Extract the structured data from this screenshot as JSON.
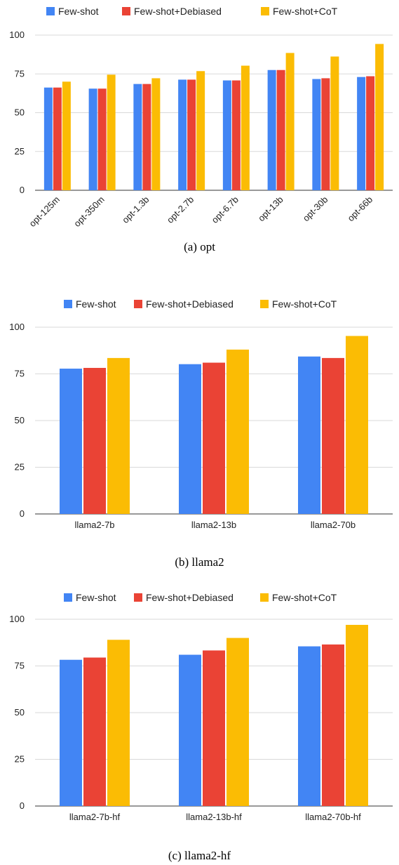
{
  "colors": {
    "few_shot": "#4285F4",
    "debiased": "#EA4335",
    "cot": "#FBBC04"
  },
  "chart_data": [
    {
      "type": "bar",
      "caption": "(a) opt",
      "categories": [
        "opt-125m",
        "opt-350m",
        "opt-1.3b",
        "opt-2.7b",
        "opt-6.7b",
        "opt-13b",
        "opt-30b",
        "opt-66b"
      ],
      "series": [
        {
          "name": "Few-shot",
          "values": [
            66.2,
            65.5,
            68.5,
            71.3,
            70.8,
            77.5,
            71.7,
            73.0
          ]
        },
        {
          "name": "Few-shot+Debiased",
          "values": [
            66.2,
            65.5,
            68.5,
            71.3,
            70.8,
            77.5,
            72.2,
            73.5
          ]
        },
        {
          "name": "Few-shot+CoT",
          "values": [
            70.0,
            74.5,
            72.2,
            76.8,
            80.3,
            88.5,
            86.2,
            94.3
          ]
        }
      ],
      "yticks": [
        0,
        25,
        50,
        75,
        100
      ],
      "ylim": [
        0,
        100
      ],
      "legend": "top",
      "grid": true
    },
    {
      "type": "bar",
      "caption": "(b) llama2",
      "categories": [
        "llama2-7b",
        "llama2-13b",
        "llama2-70b"
      ],
      "series": [
        {
          "name": "Few-shot",
          "values": [
            77.8,
            80.2,
            84.3
          ]
        },
        {
          "name": "Few-shot+Debiased",
          "values": [
            78.2,
            81.0,
            83.5
          ]
        },
        {
          "name": "Few-shot+CoT",
          "values": [
            83.5,
            88.0,
            95.3
          ]
        }
      ],
      "yticks": [
        0,
        25,
        50,
        75,
        100
      ],
      "ylim": [
        0,
        100
      ],
      "legend": "top",
      "grid": true
    },
    {
      "type": "bar",
      "caption": "(c) llama2-hf",
      "categories": [
        "llama2-7b-hf",
        "llama2-13b-hf",
        "llama2-70b-hf"
      ],
      "series": [
        {
          "name": "Few-shot",
          "values": [
            78.3,
            81.0,
            85.5
          ]
        },
        {
          "name": "Few-shot+Debiased",
          "values": [
            79.5,
            83.3,
            86.5
          ]
        },
        {
          "name": "Few-shot+CoT",
          "values": [
            89.0,
            90.0,
            97.0
          ]
        }
      ],
      "yticks": [
        0,
        25,
        50,
        75,
        100
      ],
      "ylim": [
        0,
        100
      ],
      "legend": "top",
      "grid": true
    }
  ]
}
